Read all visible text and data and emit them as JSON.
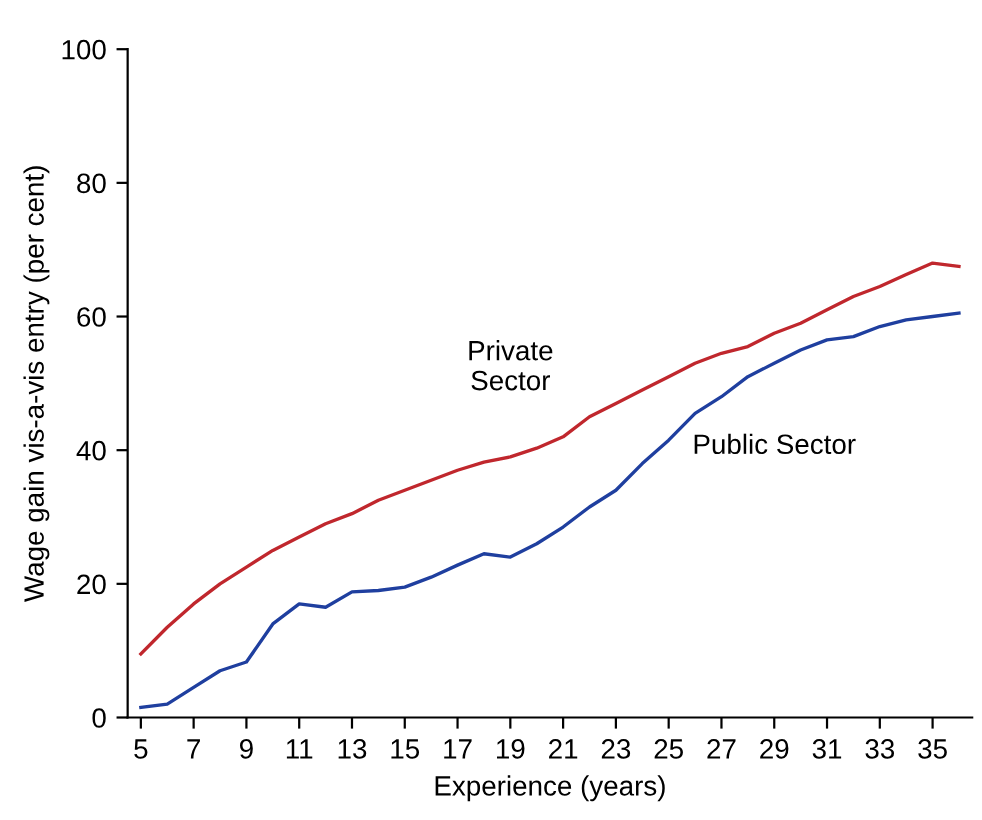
{
  "chart_data": {
    "type": "line",
    "xlabel": "Experience (years)",
    "ylabel": "Wage gain vis-a-vis entry (per cent)",
    "x": [
      5,
      6,
      7,
      8,
      9,
      10,
      11,
      12,
      13,
      14,
      15,
      16,
      17,
      18,
      19,
      20,
      21,
      22,
      23,
      24,
      25,
      26,
      27,
      28,
      29,
      30,
      31,
      32,
      33,
      34,
      35,
      36
    ],
    "series": [
      {
        "name": "Private\nSector",
        "color": "#c0272d",
        "values": [
          9.5,
          13.5,
          17,
          20,
          22.5,
          25,
          27,
          29,
          30.5,
          32.5,
          34,
          35.5,
          37,
          38.2,
          39,
          40.3,
          42,
          45,
          47,
          49,
          51,
          53,
          54.5,
          55.5,
          57.5,
          59,
          61,
          63,
          64.5,
          66.3,
          68,
          67.5
        ]
      },
      {
        "name": "Public Sector",
        "color": "#1f3f9f",
        "values": [
          1.5,
          2,
          4.5,
          7,
          8.3,
          14,
          17,
          16.5,
          18.8,
          19,
          19.5,
          21,
          22.8,
          24.5,
          24,
          26,
          28.5,
          31.5,
          34,
          38,
          41.5,
          45.5,
          48,
          51,
          53,
          55,
          56.5,
          57,
          58.5,
          59.5,
          60,
          60.5
        ]
      }
    ],
    "xlim": [
      4.5,
      36.5
    ],
    "xticks": [
      5,
      7,
      9,
      11,
      13,
      15,
      17,
      19,
      21,
      23,
      25,
      27,
      29,
      31,
      33,
      35
    ],
    "ylim": [
      0,
      100
    ],
    "yticks": [
      0,
      20,
      40,
      60,
      80,
      100
    ],
    "grid": false,
    "marker": "none",
    "line_style": "solid"
  }
}
